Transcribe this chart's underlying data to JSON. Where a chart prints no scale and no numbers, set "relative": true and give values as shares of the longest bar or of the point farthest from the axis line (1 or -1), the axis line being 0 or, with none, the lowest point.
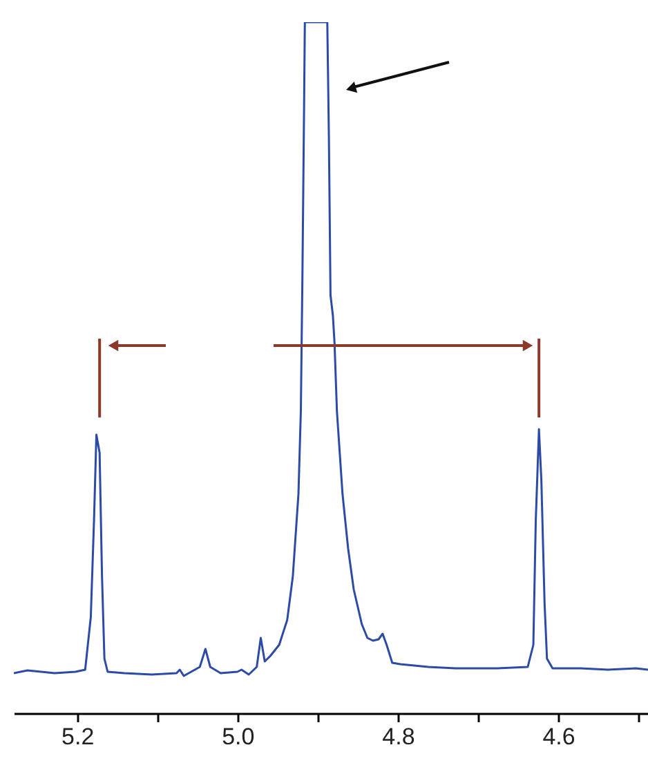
{
  "chart_data": {
    "type": "line",
    "relative": true,
    "color": "#2b4ba6",
    "marker": "none",
    "grid": false,
    "tick_labels": "x",
    "xlim": [
      5.279,
      4.488
    ],
    "xticks": [
      5.2,
      {
        "value": 5.1,
        "label": null
      },
      {
        "value": 5.0,
        "label": "5.0"
      },
      {
        "value": 4.9,
        "label": null
      },
      4.8,
      {
        "value": 4.7,
        "label": null
      },
      4.6,
      {
        "value": 4.5,
        "label": null
      }
    ],
    "ref_lines": [
      {
        "axis": "x",
        "value": 5.172,
        "color": "#8b3a2a"
      },
      {
        "axis": "x",
        "value": 4.624,
        "color": "#8b3a2a"
      }
    ],
    "x": [
      5.279,
      5.262,
      5.228,
      5.202,
      5.19,
      5.183,
      5.179,
      5.176,
      5.172,
      5.169,
      5.166,
      5.162,
      5.141,
      5.107,
      5.076,
      5.072,
      5.067,
      5.047,
      5.04,
      5.034,
      5.021,
      5.0,
      4.995,
      4.986,
      4.976,
      4.971,
      4.966,
      4.959,
      4.948,
      4.938,
      4.931,
      4.924,
      4.921,
      4.919,
      4.917,
      4.916,
      4.888,
      4.886,
      4.884,
      4.881,
      4.879,
      4.876,
      4.869,
      4.862,
      4.855,
      4.845,
      4.838,
      4.831,
      4.824,
      4.819,
      4.814,
      4.807,
      4.797,
      4.762,
      4.728,
      4.676,
      4.638,
      4.631,
      4.628,
      4.624,
      4.621,
      4.617,
      4.614,
      4.607,
      4.572,
      4.538,
      4.503,
      4.488
    ],
    "values": [
      0.058,
      0.062,
      0.058,
      0.06,
      0.063,
      0.139,
      0.278,
      0.403,
      0.377,
      0.198,
      0.079,
      0.06,
      0.058,
      0.056,
      0.058,
      0.063,
      0.054,
      0.067,
      0.093,
      0.067,
      0.058,
      0.06,
      0.063,
      0.056,
      0.067,
      0.109,
      0.075,
      0.083,
      0.099,
      0.135,
      0.198,
      0.317,
      0.437,
      0.635,
      0.873,
      1.0,
      1.0,
      0.833,
      0.605,
      0.575,
      0.536,
      0.437,
      0.317,
      0.238,
      0.179,
      0.129,
      0.109,
      0.105,
      0.107,
      0.115,
      0.099,
      0.073,
      0.071,
      0.067,
      0.065,
      0.065,
      0.067,
      0.099,
      0.278,
      0.411,
      0.337,
      0.159,
      0.079,
      0.065,
      0.065,
      0.063,
      0.065,
      0.063
    ]
  }
}
